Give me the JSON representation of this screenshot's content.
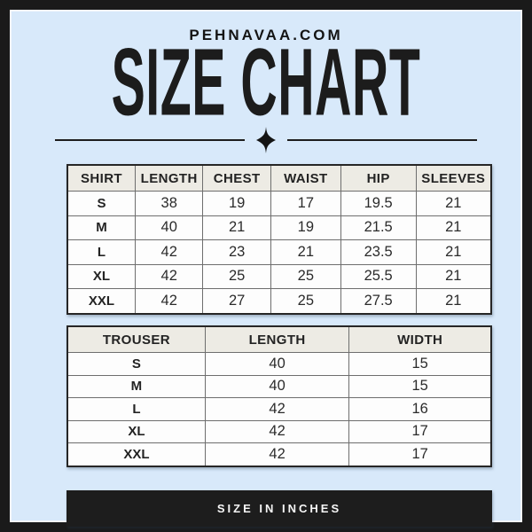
{
  "brand": "PEHNAVAA.COM",
  "title": "SIZE CHART",
  "divider": {
    "icon": "four-pointed-star"
  },
  "shirt_table": {
    "headers": [
      "SHIRT",
      "LENGTH",
      "CHEST",
      "WAIST",
      "HIP",
      "SLEEVES"
    ],
    "rows": [
      [
        "S",
        "38",
        "19",
        "17",
        "19.5",
        "21"
      ],
      [
        "M",
        "40",
        "21",
        "19",
        "21.5",
        "21"
      ],
      [
        "L",
        "42",
        "23",
        "21",
        "23.5",
        "21"
      ],
      [
        "XL",
        "42",
        "25",
        "25",
        "25.5",
        "21"
      ],
      [
        "XXL",
        "42",
        "27",
        "25",
        "27.5",
        "21"
      ]
    ]
  },
  "trouser_table": {
    "headers": [
      "TROUSER",
      "LENGTH",
      "WIDTH"
    ],
    "rows": [
      [
        "S",
        "40",
        "15"
      ],
      [
        "M",
        "40",
        "15"
      ],
      [
        "L",
        "42",
        "16"
      ],
      [
        "XL",
        "42",
        "17"
      ],
      [
        "XXL",
        "42",
        "17"
      ]
    ]
  },
  "footer": {
    "label": "SIZE IN INCHES"
  },
  "colors": {
    "frame": "#1a1a1a",
    "background": "#d8e9fa",
    "header_cell_bg": "#edebe4",
    "cell_bg": "#fdfdfd",
    "banner_bg": "#1d1d1d",
    "text": "#1c1c1c",
    "banner_text": "#f7f7f7"
  }
}
